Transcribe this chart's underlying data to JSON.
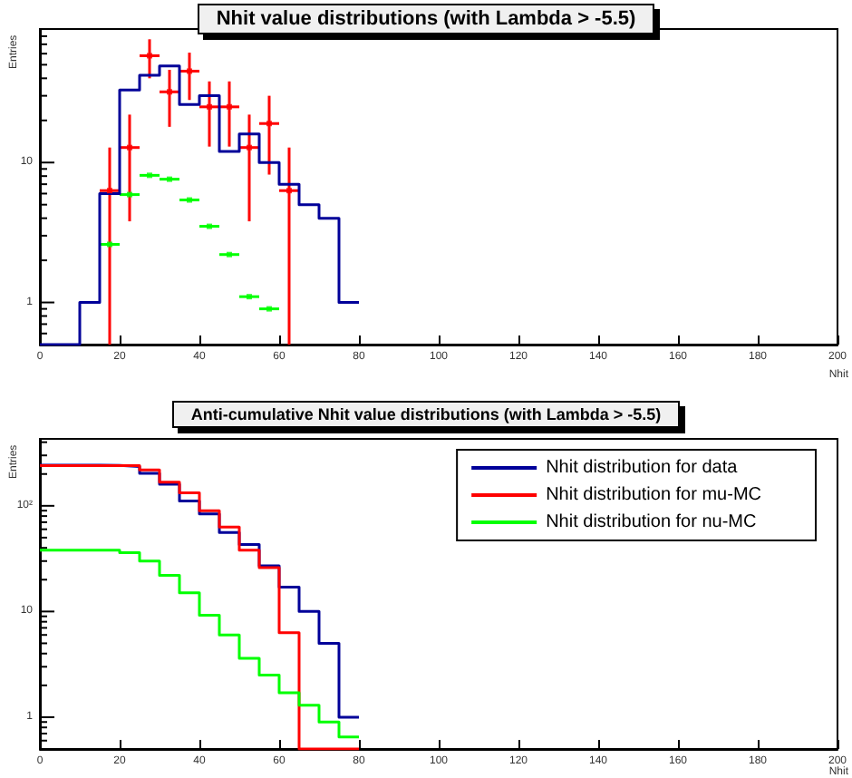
{
  "chart_data": [
    {
      "type": "histogram",
      "title": "Nhit value distributions (with Lambda > -5.5)",
      "xlabel": "Nhit",
      "ylabel": "Entries",
      "log": "y",
      "xlim": [
        0,
        200
      ],
      "xticks": [
        0,
        20,
        40,
        60,
        80,
        100,
        120,
        140,
        160,
        180,
        200
      ],
      "ylim": [
        0.5,
        90
      ],
      "yticks": [
        {
          "value": 0.6,
          "label": null
        },
        {
          "value": 0.7,
          "label": null
        },
        {
          "value": 0.8,
          "label": null
        },
        {
          "value": 0.9,
          "label": null
        },
        {
          "value": 1,
          "label": "1"
        },
        {
          "value": 2,
          "label": null
        },
        {
          "value": 3,
          "label": null
        },
        {
          "value": 4,
          "label": null
        },
        {
          "value": 5,
          "label": null
        },
        {
          "value": 6,
          "label": null
        },
        {
          "value": 7,
          "label": null
        },
        {
          "value": 8,
          "label": null
        },
        {
          "value": 9,
          "label": null
        },
        {
          "value": 10,
          "label": "10"
        },
        {
          "value": 20,
          "label": null
        },
        {
          "value": 30,
          "label": null
        },
        {
          "value": 40,
          "label": null
        },
        {
          "value": 50,
          "label": null
        },
        {
          "value": 60,
          "label": null
        },
        {
          "value": 70,
          "label": null
        },
        {
          "value": 80,
          "label": null
        },
        {
          "value": 90,
          "label": null
        }
      ],
      "bins": [
        0,
        5,
        10,
        15,
        20,
        25,
        30,
        35,
        40,
        45,
        50,
        55,
        60,
        65,
        70,
        75,
        80
      ],
      "series": [
        {
          "color": "#000099",
          "values": [
            null,
            null,
            1,
            6,
            33,
            42,
            49,
            26,
            30,
            12,
            16,
            10,
            7,
            5,
            4,
            1
          ]
        },
        {
          "type": "scatter",
          "color": "#ff0000",
          "x": [
            17.5,
            22.5,
            27.5,
            32.5,
            37.5,
            42.5,
            47.5,
            52.5,
            57.5,
            62.5
          ],
          "values": [
            6.3,
            12.8,
            58,
            32,
            45,
            25,
            25,
            12.8,
            19,
            6.3
          ],
          "errors": [
            [
              0.5,
              12.8
            ],
            [
              3.8,
              22
            ],
            [
              40,
              76
            ],
            [
              18,
              46
            ],
            [
              28,
              61
            ],
            [
              13,
              38
            ],
            [
              13,
              38
            ],
            [
              3.8,
              22
            ],
            [
              8.2,
              30
            ],
            [
              0.5,
              12.8
            ]
          ],
          "xerrors": [
            2.5,
            2.5,
            2.5,
            2.5,
            2.5,
            2.5,
            2.5,
            2.5,
            2.5,
            2.5
          ]
        },
        {
          "type": "scatter",
          "color": "#00ff00",
          "x": [
            17.5,
            22.5,
            27.5,
            32.5,
            37.5,
            42.5,
            47.5,
            52.5,
            57.5
          ],
          "values": [
            2.6,
            5.9,
            8.1,
            7.6,
            5.4,
            3.5,
            2.2,
            1.1,
            0.9
          ],
          "xerrors": [
            2.5,
            2.5,
            2.5,
            2.5,
            2.5,
            2.5,
            2.5,
            2.5,
            2.5
          ]
        }
      ]
    },
    {
      "type": "histogram",
      "title": "Anti-cumulative Nhit value distributions (with Lambda > -5.5)",
      "xlabel": "Nhit",
      "ylabel": "Entries",
      "log": "y",
      "legend": "top right",
      "xlim": [
        0,
        200
      ],
      "xticks": [
        0,
        20,
        40,
        60,
        80,
        100,
        120,
        140,
        160,
        180,
        200
      ],
      "ylim": [
        0.5,
        430
      ],
      "yticks": [
        {
          "value": 0.6,
          "label": null
        },
        {
          "value": 0.7,
          "label": null
        },
        {
          "value": 0.8,
          "label": null
        },
        {
          "value": 0.9,
          "label": null
        },
        {
          "value": 1,
          "label": "1"
        },
        {
          "value": 2,
          "label": null
        },
        {
          "value": 3,
          "label": null
        },
        {
          "value": 4,
          "label": null
        },
        {
          "value": 5,
          "label": null
        },
        {
          "value": 6,
          "label": null
        },
        {
          "value": 7,
          "label": null
        },
        {
          "value": 8,
          "label": null
        },
        {
          "value": 9,
          "label": null
        },
        {
          "value": 10,
          "label": "10"
        },
        {
          "value": 20,
          "label": null
        },
        {
          "value": 30,
          "label": null
        },
        {
          "value": 40,
          "label": null
        },
        {
          "value": 50,
          "label": null
        },
        {
          "value": 60,
          "label": null
        },
        {
          "value": 70,
          "label": null
        },
        {
          "value": 80,
          "label": null
        },
        {
          "value": 90,
          "label": null
        },
        {
          "value": 100,
          "label": "10²"
        },
        {
          "value": 200,
          "label": null
        },
        {
          "value": 300,
          "label": null
        },
        {
          "value": 400,
          "label": null
        }
      ],
      "bins": [
        0,
        5,
        10,
        15,
        20,
        25,
        30,
        35,
        40,
        45,
        50,
        55,
        60,
        65,
        70,
        75,
        80
      ],
      "series": [
        {
          "name": "Nhit distribution for data",
          "color": "#000099",
          "values": [
            242,
            242,
            242,
            241,
            235,
            203,
            160,
            111,
            84,
            56,
            43,
            27,
            17,
            10,
            5,
            1
          ]
        },
        {
          "name": "Nhit distribution for mu-MC",
          "color": "#ff0000",
          "values": [
            240,
            240,
            240,
            240,
            240,
            219,
            167,
            133,
            90,
            63,
            38,
            26,
            6.3,
            null,
            null,
            null
          ]
        },
        {
          "name": "Nhit distribution for nu-MC",
          "color": "#00ff00",
          "values": [
            38,
            38,
            38,
            38,
            36,
            30,
            22,
            15,
            9.2,
            6,
            3.6,
            2.5,
            1.7,
            1.3,
            0.9,
            0.65
          ]
        }
      ]
    }
  ]
}
